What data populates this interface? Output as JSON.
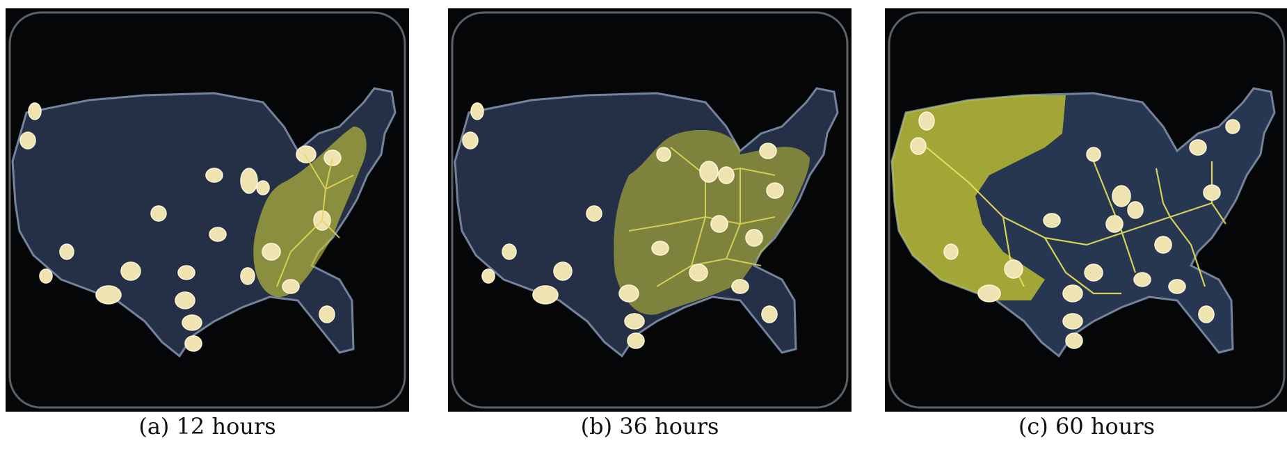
{
  "figure": {
    "panels": [
      {
        "id": "a",
        "caption": "(a) 12 hours",
        "growth_stage": 0.12
      },
      {
        "id": "b",
        "caption": "(b) 36 hours",
        "growth_stage": 0.36
      },
      {
        "id": "c",
        "caption": "(c) 60 hours",
        "growth_stage": 0.6
      }
    ]
  },
  "colors": {
    "background": "#000000",
    "agar_map": "#2a3547",
    "oat_flake": "#efe4b0",
    "slime_mold": "#d8d23a",
    "dish_rim": "#6b6f75"
  }
}
